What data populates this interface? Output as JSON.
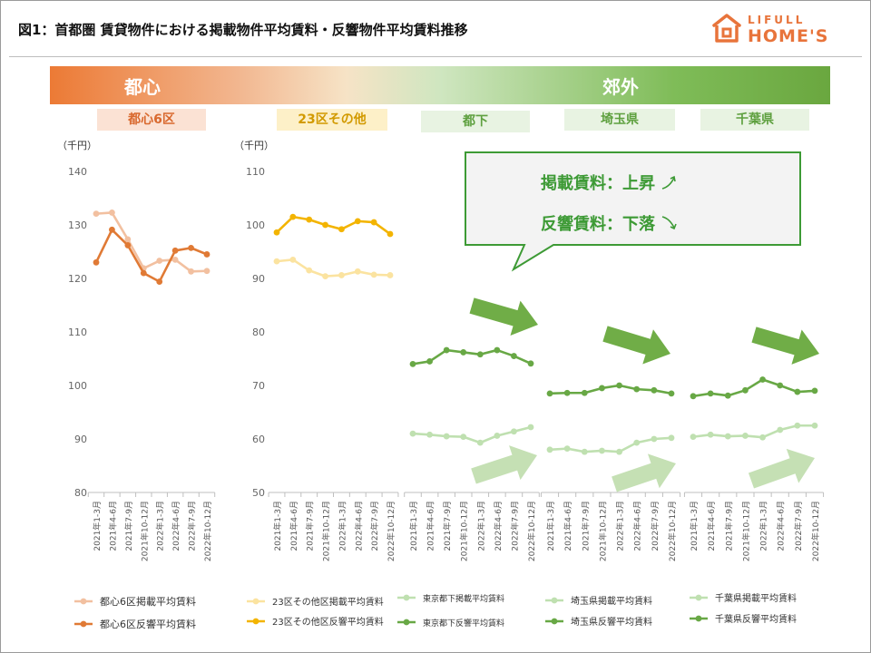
{
  "header": {
    "title": "図1：首都圏 賃貸物件における掲載物件平均賃料・反響物件平均賃料推移",
    "logo_top": "LIFULL",
    "logo_bottom": "HOME'S",
    "brand_color": "#e8743b"
  },
  "bands": {
    "central": "都心",
    "suburb": "郊外"
  },
  "callout": {
    "line1": "掲載賃料：上昇",
    "line2": "反響賃料：下落",
    "color": "#3d9a35"
  },
  "colors": {
    "listing_orange": "#f2c0a0",
    "response_orange": "#e07a35",
    "listing_yellow": "#fbe3a0",
    "response_yellow": "#f3b400",
    "listing_green": "#bfe0b0",
    "response_green": "#68a845",
    "arrow_dark": "#70ad47",
    "arrow_light": "#c5e0b4"
  },
  "chart_data": [
    {
      "type": "line",
      "region": "都心6区",
      "unit": "（千円）",
      "categories": [
        "2021年1-3月",
        "2021年4-6月",
        "2021年7-9月",
        "2021年10-12月",
        "2022年1-3月",
        "2022年4-6月",
        "2022年7-9月",
        "2022年10-12月"
      ],
      "ylim": [
        80,
        140
      ],
      "yticks": [
        80,
        90,
        100,
        110,
        120,
        130,
        140
      ],
      "series": [
        {
          "name": "都心6区掲載平均賃料",
          "values": [
            132.1,
            132.3,
            127.3,
            121.9,
            123.3,
            123.5,
            121.3,
            121.4
          ]
        },
        {
          "name": "都心6区反響平均賃料",
          "values": [
            123.0,
            129.1,
            126.2,
            121.0,
            119.4,
            125.2,
            125.7,
            124.5
          ]
        }
      ]
    },
    {
      "type": "line",
      "region": "23区その他",
      "unit": "（千円）",
      "categories": [
        "2021年1-3月",
        "2021年4-6月",
        "2021年7-9月",
        "2021年10-12月",
        "2022年1-3月",
        "2022年4-6月",
        "2022年7-9月",
        "2022年10-12月"
      ],
      "ylim": [
        50,
        110
      ],
      "yticks": [
        50,
        60,
        70,
        80,
        90,
        100,
        110
      ],
      "series": [
        {
          "name": "23区その他区掲載平均賃料",
          "values": [
            93.2,
            93.5,
            91.5,
            90.4,
            90.6,
            91.3,
            90.7,
            90.6
          ]
        },
        {
          "name": "23区その他区反響平均賃料",
          "values": [
            98.6,
            101.5,
            101.0,
            100.0,
            99.2,
            100.7,
            100.5,
            98.3
          ]
        }
      ]
    },
    {
      "type": "line",
      "region": "都下",
      "categories": [
        "2021年1-3月",
        "2021年4-6月",
        "2021年7-9月",
        "2021年10-12月",
        "2022年1-3月",
        "2022年4-6月",
        "2022年7-9月",
        "2022年10-12月"
      ],
      "ylim": [
        50,
        110
      ],
      "series": [
        {
          "name": "東京都下掲載平均賃料",
          "values": [
            61.0,
            60.8,
            60.5,
            60.4,
            59.3,
            60.6,
            61.4,
            62.2
          ]
        },
        {
          "name": "東京都下反響平均賃料",
          "values": [
            74.0,
            74.5,
            76.6,
            76.2,
            75.8,
            76.6,
            75.5,
            74.1
          ]
        }
      ]
    },
    {
      "type": "line",
      "region": "埼玉県",
      "categories": [
        "2021年1-3月",
        "2021年4-6月",
        "2021年7-9月",
        "2021年10-12月",
        "2022年1-3月",
        "2022年4-6月",
        "2022年7-9月",
        "2022年10-12月"
      ],
      "ylim": [
        50,
        110
      ],
      "series": [
        {
          "name": "埼玉県掲載平均賃料",
          "values": [
            58.0,
            58.2,
            57.6,
            57.8,
            57.6,
            59.3,
            60.0,
            60.2
          ]
        },
        {
          "name": "埼玉県反響平均賃料",
          "values": [
            68.5,
            68.6,
            68.6,
            69.5,
            70.0,
            69.3,
            69.1,
            68.5
          ]
        }
      ]
    },
    {
      "type": "line",
      "region": "千葉県",
      "categories": [
        "2021年1-3月",
        "2021年4-6月",
        "2021年7-9月",
        "2021年10-12月",
        "2022年1-3月",
        "2022年4-6月",
        "2022年7-9月",
        "2022年10-12月"
      ],
      "ylim": [
        50,
        110
      ],
      "series": [
        {
          "name": "千葉県掲載平均賃料",
          "values": [
            60.4,
            60.8,
            60.5,
            60.6,
            60.3,
            61.7,
            62.5,
            62.5
          ]
        },
        {
          "name": "千葉県反響平均賃料",
          "values": [
            68.0,
            68.5,
            68.1,
            69.1,
            71.1,
            70.0,
            68.8,
            69.0
          ]
        }
      ]
    }
  ]
}
